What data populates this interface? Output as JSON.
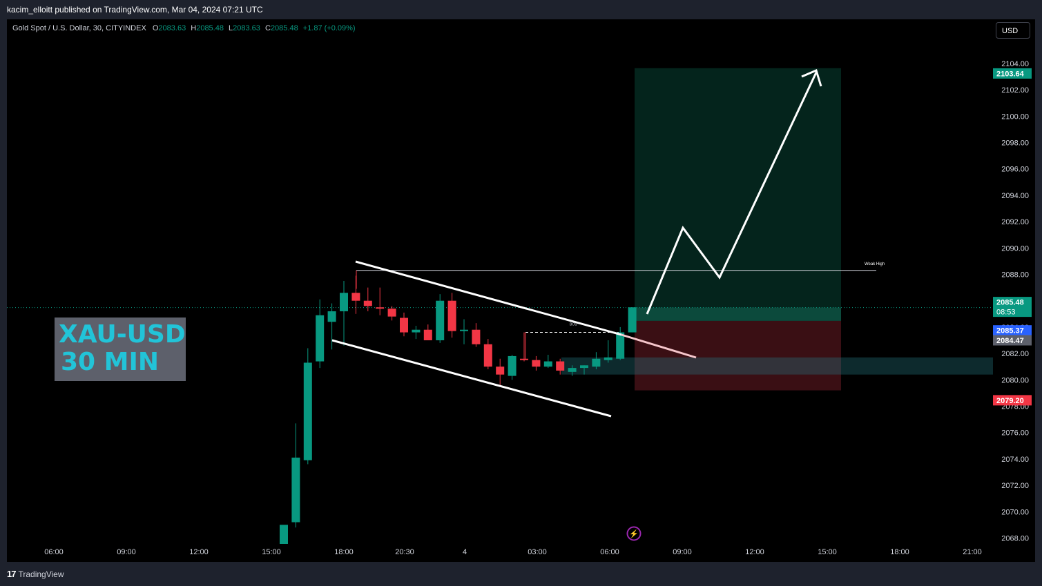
{
  "header": {
    "publisher_line": "kacim_elloitt published on TradingView.com, Mar 04, 2024 07:21 UTC"
  },
  "legend": {
    "symbol": "Gold Spot / U.S. Dollar, 30, CITYINDEX",
    "o_label": "O",
    "o_value": "2083.63",
    "h_label": "H",
    "h_value": "2085.48",
    "l_label": "L",
    "l_value": "2083.63",
    "c_label": "C",
    "c_value": "2085.48",
    "change": "+1.87 (+0.09%)"
  },
  "currency": "USD",
  "watermark": {
    "line1": "XAU-USD",
    "line2": "30 MIN"
  },
  "footer": {
    "brand": "TradingView"
  },
  "colors": {
    "up": "#089981",
    "down": "#f23645",
    "background": "#000000",
    "target_zone": "#04241c",
    "stop_zone": "#3a0f14",
    "accent_blue": "#2962ff"
  },
  "chart_data": {
    "type": "candlestick",
    "symbol": "XAUUSD",
    "timeframe": "30",
    "y_axis_ticks": [
      "2068.00",
      "2070.00",
      "2072.00",
      "2074.00",
      "2076.00",
      "2078.00",
      "2080.00",
      "2082.00",
      "2084.00",
      "2086.00",
      "2088.00",
      "2090.00",
      "2092.00",
      "2094.00",
      "2096.00",
      "2098.00",
      "2100.00",
      "2102.00",
      "2104.00"
    ],
    "x_axis_ticks": [
      "06:00",
      "09:00",
      "12:00",
      "15:00",
      "18:00",
      "20:30",
      "4",
      "03:00",
      "06:00",
      "09:00",
      "12:00",
      "15:00",
      "18:00",
      "21:00"
    ],
    "ylim": [
      2067.3,
      2104.6
    ],
    "candles": [
      {
        "o": 2067.4,
        "h": 2068.7,
        "l": 2067.0,
        "c": 2069.0
      },
      {
        "o": 2069.2,
        "h": 2076.7,
        "l": 2068.8,
        "c": 2074.1
      },
      {
        "o": 2073.9,
        "h": 2082.4,
        "l": 2073.6,
        "c": 2081.3
      },
      {
        "o": 2081.4,
        "h": 2086.1,
        "l": 2080.9,
        "c": 2084.9
      },
      {
        "o": 2084.4,
        "h": 2085.8,
        "l": 2082.3,
        "c": 2085.2
      },
      {
        "o": 2085.2,
        "h": 2087.5,
        "l": 2082.6,
        "c": 2086.6
      },
      {
        "o": 2086.6,
        "h": 2087.9,
        "l": 2085.0,
        "c": 2086.0
      },
      {
        "o": 2086.0,
        "h": 2087.0,
        "l": 2085.2,
        "c": 2085.6
      },
      {
        "o": 2085.5,
        "h": 2087.0,
        "l": 2084.9,
        "c": 2085.4
      },
      {
        "o": 2085.4,
        "h": 2085.6,
        "l": 2084.5,
        "c": 2084.8
      },
      {
        "o": 2084.7,
        "h": 2085.1,
        "l": 2083.3,
        "c": 2083.6
      },
      {
        "o": 2083.6,
        "h": 2084.1,
        "l": 2083.1,
        "c": 2083.8
      },
      {
        "o": 2083.8,
        "h": 2084.2,
        "l": 2083.0,
        "c": 2083.0
      },
      {
        "o": 2083.0,
        "h": 2086.5,
        "l": 2082.8,
        "c": 2086.0
      },
      {
        "o": 2086.0,
        "h": 2086.6,
        "l": 2083.2,
        "c": 2083.7
      },
      {
        "o": 2083.7,
        "h": 2084.6,
        "l": 2082.7,
        "c": 2083.8
      },
      {
        "o": 2083.8,
        "h": 2084.3,
        "l": 2082.5,
        "c": 2082.7
      },
      {
        "o": 2082.7,
        "h": 2083.1,
        "l": 2080.8,
        "c": 2081.0
      },
      {
        "o": 2081.0,
        "h": 2081.6,
        "l": 2079.6,
        "c": 2080.4
      },
      {
        "o": 2080.3,
        "h": 2081.9,
        "l": 2080.0,
        "c": 2081.8
      },
      {
        "o": 2081.6,
        "h": 2083.6,
        "l": 2081.4,
        "c": 2081.5
      },
      {
        "o": 2081.5,
        "h": 2081.8,
        "l": 2080.7,
        "c": 2081.0
      },
      {
        "o": 2081.0,
        "h": 2081.9,
        "l": 2080.9,
        "c": 2081.4
      },
      {
        "o": 2081.4,
        "h": 2081.6,
        "l": 2080.4,
        "c": 2080.7
      },
      {
        "o": 2080.6,
        "h": 2081.1,
        "l": 2080.3,
        "c": 2080.9
      },
      {
        "o": 2080.9,
        "h": 2081.1,
        "l": 2080.4,
        "c": 2081.1
      },
      {
        "o": 2081.0,
        "h": 2082.1,
        "l": 2080.8,
        "c": 2081.6
      },
      {
        "o": 2081.5,
        "h": 2083.0,
        "l": 2081.3,
        "c": 2081.7
      },
      {
        "o": 2081.6,
        "h": 2084.0,
        "l": 2081.5,
        "c": 2083.6
      },
      {
        "o": 2083.6,
        "h": 2085.5,
        "l": 2083.6,
        "c": 2085.5
      }
    ],
    "current_price": "2085.48",
    "countdown": "08:53",
    "price_badges": [
      {
        "label": "2103.64",
        "value": 2103.64,
        "color": "#089981"
      },
      {
        "label": "2085.37",
        "value": 2085.37,
        "color": "#2962ff"
      },
      {
        "label": "2084.47",
        "value": 2084.47,
        "color": "#5d606b"
      },
      {
        "label": "2079.20",
        "value": 2079.2,
        "color": "#f23645"
      }
    ],
    "position": {
      "entry": 2084.47,
      "target": 2103.64,
      "stop": 2079.2
    },
    "demand_zone": [
      2080.4,
      2081.7
    ],
    "weak_high": {
      "label": "Weak High",
      "value": 2088.3
    },
    "bos": {
      "label": "BOS",
      "value": 2083.6
    },
    "annotations": [
      "falling channel",
      "breakout projection arrow"
    ]
  }
}
